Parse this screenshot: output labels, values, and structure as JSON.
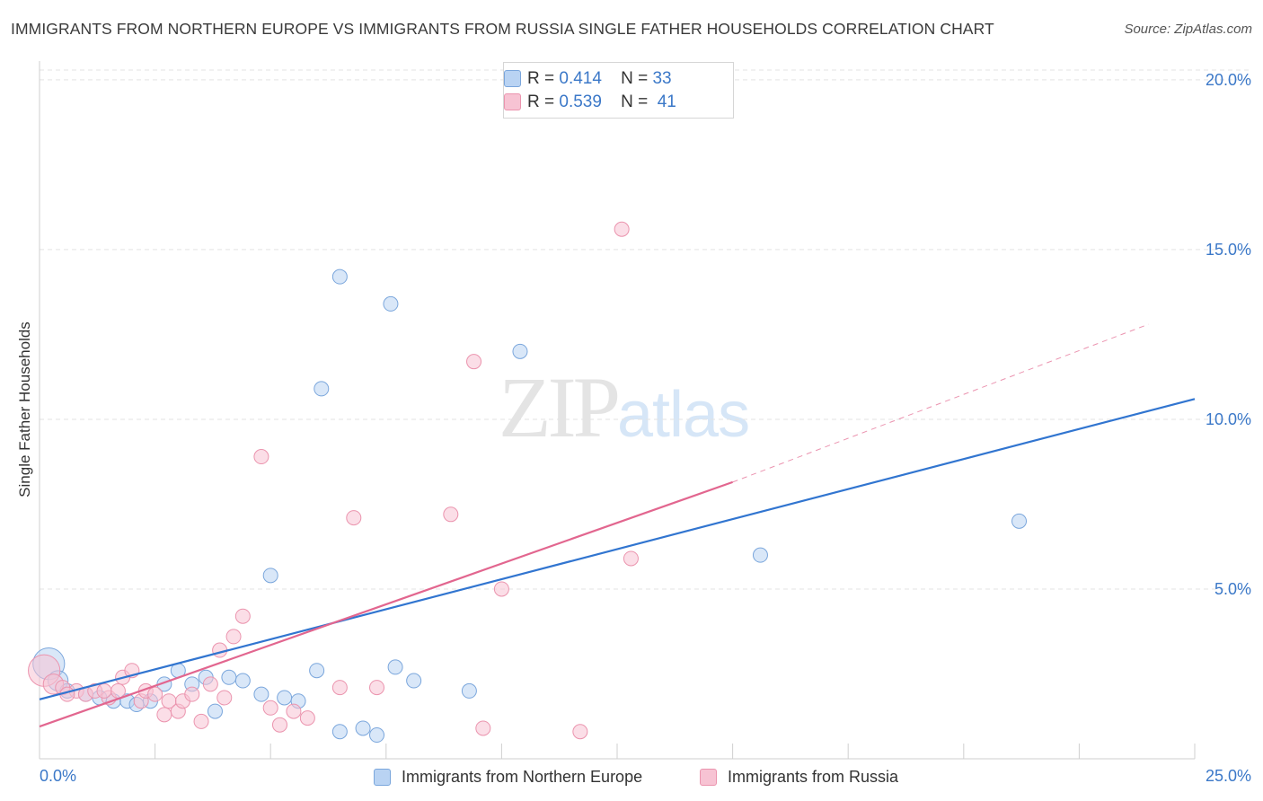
{
  "title": "IMMIGRANTS FROM NORTHERN EUROPE VS IMMIGRANTS FROM RUSSIA SINGLE FATHER HOUSEHOLDS CORRELATION CHART",
  "source": "Source: ZipAtlas.com",
  "legend": {
    "northern_europe": {
      "r_label": "R =",
      "r_value": "0.414",
      "n_label": "N =",
      "n_value": "33",
      "name": "Immigrants from Northern Europe"
    },
    "russia": {
      "r_label": "R =",
      "r_value": "0.539",
      "n_label": "N =",
      "n_value": "41",
      "name": "Immigrants from Russia"
    }
  },
  "watermark": {
    "zip": "ZIP",
    "atlas": "atlas"
  },
  "colors": {
    "blue_fill": "#b9d3f3",
    "blue_stroke": "#7aa6dc",
    "blue_line": "#3175d0",
    "pink_fill": "#f7c3d3",
    "pink_stroke": "#eb94ae",
    "pink_line": "#e2668f",
    "grid": "#e3e3e3",
    "tick_text": "#3b78c8"
  },
  "chart_data": {
    "type": "scatter",
    "title": "IMMIGRANTS FROM NORTHERN EUROPE VS IMMIGRANTS FROM RUSSIA SINGLE FATHER HOUSEHOLDS CORRELATION CHART",
    "xlabel": "",
    "ylabel": "Single Father Households",
    "xlim": [
      0,
      25
    ],
    "ylim": [
      0,
      20.5
    ],
    "x_tick_labels": [
      "0.0%",
      "25.0%"
    ],
    "y_ticks": [
      5,
      10,
      15,
      20
    ],
    "y_tick_labels": [
      "5.0%",
      "10.0%",
      "15.0%",
      "20.0%"
    ],
    "grid": true,
    "series": [
      {
        "name": "Immigrants from Northern Europe",
        "r": 0.414,
        "n": 33,
        "points": [
          {
            "x": 0.2,
            "y": 2.8,
            "size": 22
          },
          {
            "x": 0.4,
            "y": 2.3,
            "size": 14
          },
          {
            "x": 0.6,
            "y": 2.0,
            "size": 10
          },
          {
            "x": 1.0,
            "y": 1.9,
            "size": 10
          },
          {
            "x": 1.3,
            "y": 1.8,
            "size": 10
          },
          {
            "x": 1.6,
            "y": 1.7,
            "size": 10
          },
          {
            "x": 1.9,
            "y": 1.7,
            "size": 10
          },
          {
            "x": 2.1,
            "y": 1.6,
            "size": 10
          },
          {
            "x": 2.4,
            "y": 1.7,
            "size": 10
          },
          {
            "x": 2.7,
            "y": 2.2,
            "size": 10
          },
          {
            "x": 3.0,
            "y": 2.6,
            "size": 10
          },
          {
            "x": 3.3,
            "y": 2.2,
            "size": 10
          },
          {
            "x": 3.6,
            "y": 2.4,
            "size": 10
          },
          {
            "x": 3.8,
            "y": 1.4,
            "size": 10
          },
          {
            "x": 4.1,
            "y": 2.4,
            "size": 10
          },
          {
            "x": 4.4,
            "y": 2.3,
            "size": 10
          },
          {
            "x": 4.8,
            "y": 1.9,
            "size": 10
          },
          {
            "x": 5.0,
            "y": 5.4,
            "size": 10
          },
          {
            "x": 5.3,
            "y": 1.8,
            "size": 10
          },
          {
            "x": 5.6,
            "y": 1.7,
            "size": 10
          },
          {
            "x": 6.0,
            "y": 2.6,
            "size": 10
          },
          {
            "x": 6.1,
            "y": 10.9,
            "size": 10
          },
          {
            "x": 6.5,
            "y": 14.2,
            "size": 10
          },
          {
            "x": 6.5,
            "y": 0.8,
            "size": 10
          },
          {
            "x": 7.0,
            "y": 0.9,
            "size": 10
          },
          {
            "x": 7.3,
            "y": 0.7,
            "size": 10
          },
          {
            "x": 7.6,
            "y": 13.4,
            "size": 10
          },
          {
            "x": 7.7,
            "y": 2.7,
            "size": 10
          },
          {
            "x": 8.1,
            "y": 2.3,
            "size": 10
          },
          {
            "x": 9.3,
            "y": 2.0,
            "size": 10
          },
          {
            "x": 10.4,
            "y": 12.0,
            "size": 10
          },
          {
            "x": 15.6,
            "y": 6.0,
            "size": 10
          },
          {
            "x": 21.2,
            "y": 7.0,
            "size": 10
          }
        ],
        "trend": {
          "x0": 0,
          "y0": 1.75,
          "x1": 25,
          "y1": 10.6
        }
      },
      {
        "name": "Immigrants from Russia",
        "r": 0.539,
        "n": 41,
        "points": [
          {
            "x": 0.1,
            "y": 2.6,
            "size": 22
          },
          {
            "x": 0.3,
            "y": 2.2,
            "size": 14
          },
          {
            "x": 0.5,
            "y": 2.1,
            "size": 10
          },
          {
            "x": 0.8,
            "y": 2.0,
            "size": 10
          },
          {
            "x": 1.0,
            "y": 1.9,
            "size": 10
          },
          {
            "x": 1.2,
            "y": 2.0,
            "size": 10
          },
          {
            "x": 1.5,
            "y": 1.8,
            "size": 10
          },
          {
            "x": 1.7,
            "y": 2.0,
            "size": 10
          },
          {
            "x": 1.8,
            "y": 2.4,
            "size": 10
          },
          {
            "x": 2.0,
            "y": 2.6,
            "size": 10
          },
          {
            "x": 2.2,
            "y": 1.7,
            "size": 10
          },
          {
            "x": 2.3,
            "y": 2.0,
            "size": 10
          },
          {
            "x": 2.5,
            "y": 1.9,
            "size": 10
          },
          {
            "x": 2.7,
            "y": 1.3,
            "size": 10
          },
          {
            "x": 2.8,
            "y": 1.7,
            "size": 10
          },
          {
            "x": 3.0,
            "y": 1.4,
            "size": 10
          },
          {
            "x": 3.1,
            "y": 1.7,
            "size": 10
          },
          {
            "x": 3.3,
            "y": 1.9,
            "size": 10
          },
          {
            "x": 3.5,
            "y": 1.1,
            "size": 10
          },
          {
            "x": 3.7,
            "y": 2.2,
            "size": 10
          },
          {
            "x": 3.9,
            "y": 3.2,
            "size": 10
          },
          {
            "x": 4.0,
            "y": 1.8,
            "size": 10
          },
          {
            "x": 4.2,
            "y": 3.6,
            "size": 10
          },
          {
            "x": 4.4,
            "y": 4.2,
            "size": 10
          },
          {
            "x": 4.8,
            "y": 8.9,
            "size": 10
          },
          {
            "x": 5.0,
            "y": 1.5,
            "size": 10
          },
          {
            "x": 5.2,
            "y": 1.0,
            "size": 10
          },
          {
            "x": 5.5,
            "y": 1.4,
            "size": 10
          },
          {
            "x": 5.8,
            "y": 1.2,
            "size": 10
          },
          {
            "x": 6.5,
            "y": 2.1,
            "size": 10
          },
          {
            "x": 6.8,
            "y": 7.1,
            "size": 10
          },
          {
            "x": 7.3,
            "y": 2.1,
            "size": 10
          },
          {
            "x": 8.9,
            "y": 7.2,
            "size": 10
          },
          {
            "x": 9.4,
            "y": 11.7,
            "size": 10
          },
          {
            "x": 9.6,
            "y": 0.9,
            "size": 10
          },
          {
            "x": 10.0,
            "y": 5.0,
            "size": 10
          },
          {
            "x": 11.7,
            "y": 0.8,
            "size": 10
          },
          {
            "x": 12.6,
            "y": 15.6,
            "size": 10
          },
          {
            "x": 12.8,
            "y": 5.9,
            "size": 10
          },
          {
            "x": 0.6,
            "y": 1.9,
            "size": 10
          },
          {
            "x": 1.4,
            "y": 2.0,
            "size": 10
          }
        ],
        "trend": {
          "x0": 0,
          "y0": 0.95,
          "x1": 15.0,
          "y1": 8.15
        },
        "trend_extension": {
          "x0": 15.0,
          "y0": 8.15,
          "x1": 24.0,
          "y1": 12.8
        }
      }
    ]
  }
}
